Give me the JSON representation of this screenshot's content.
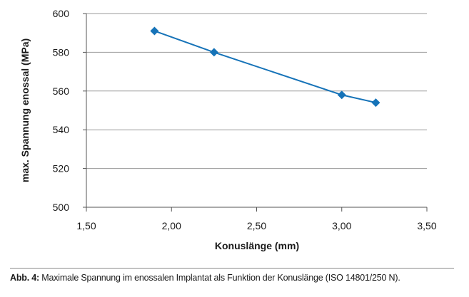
{
  "colors": {
    "line": "#1673b8",
    "grid": "#9a9a9a",
    "axis": "#555555",
    "text": "#1a1a1a"
  },
  "chart_data": {
    "type": "line",
    "xlabel": "Konuslänge (mm)",
    "ylabel": "max. Spannung enossal (MPa)",
    "xlim": [
      1.5,
      3.5
    ],
    "ylim": [
      500,
      600
    ],
    "xticks": [
      1.5,
      2.0,
      2.5,
      3.0,
      3.5
    ],
    "yticks": [
      500,
      520,
      540,
      560,
      580,
      600
    ],
    "xtick_labels": [
      "1,50",
      "2,00",
      "2,50",
      "3,00",
      "3,50"
    ],
    "ytick_labels": [
      "500",
      "520",
      "540",
      "560",
      "580",
      "600"
    ],
    "grid": "horizontal",
    "marker": "diamond",
    "series": [
      {
        "x": [
          1.9,
          2.25,
          3.0,
          3.2
        ],
        "y": [
          591,
          580,
          558,
          554
        ]
      }
    ]
  },
  "caption": {
    "label": "Abb. 4:",
    "text": " Maximale Spannung im enossalen Implantat als Funktion der Konuslänge (ISO 14801/250 N)."
  }
}
